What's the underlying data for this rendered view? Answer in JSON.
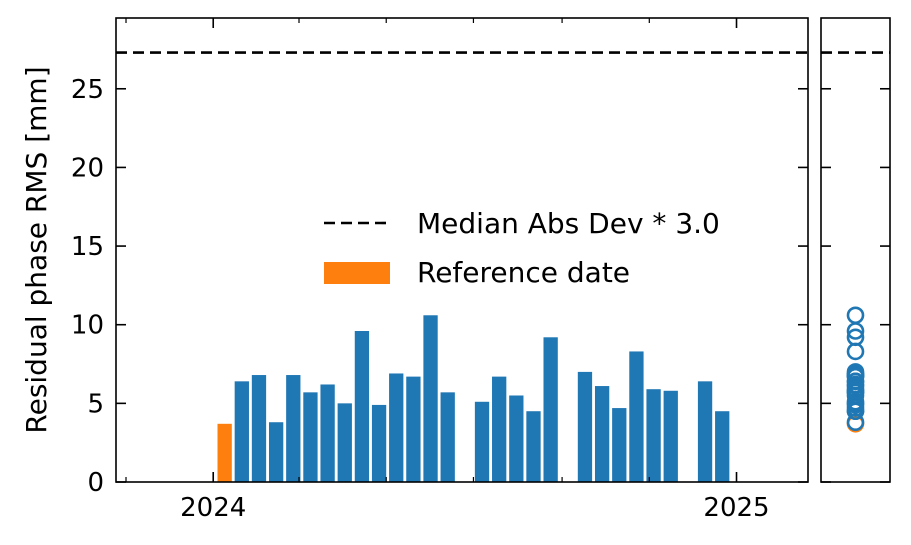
{
  "chart_data": {
    "type": "bar",
    "ylabel": "Residual phase RMS [mm]",
    "ylim": [
      0,
      29.5
    ],
    "xlim": [
      "2023-10-25",
      "2025-02-20"
    ],
    "yticks": [
      0,
      5,
      10,
      15,
      20,
      25
    ],
    "xticks": [
      {
        "date": "2024-01-01",
        "label": "2024"
      },
      {
        "date": "2025-01-01",
        "label": "2025"
      }
    ],
    "minor_xticks": [
      "2023-11-01",
      "2024-03-01",
      "2024-05-01",
      "2024-07-01",
      "2024-09-01",
      "2024-11-01"
    ],
    "threshold": {
      "value": 27.3,
      "label": "Median Abs Dev * 3.0",
      "style": "dashed",
      "color": "#000000"
    },
    "reference": {
      "label": "Reference date",
      "color": "#ff7f0e"
    },
    "series_color": "#1f77b4",
    "bars": [
      {
        "date": "2024-01-09",
        "value": 3.7,
        "reference": true
      },
      {
        "date": "2024-01-21",
        "value": 6.4
      },
      {
        "date": "2024-02-02",
        "value": 6.8
      },
      {
        "date": "2024-02-14",
        "value": 3.8
      },
      {
        "date": "2024-02-26",
        "value": 6.8
      },
      {
        "date": "2024-03-09",
        "value": 5.7
      },
      {
        "date": "2024-03-21",
        "value": 6.2
      },
      {
        "date": "2024-04-02",
        "value": 5.0
      },
      {
        "date": "2024-04-14",
        "value": 9.6
      },
      {
        "date": "2024-04-26",
        "value": 4.9
      },
      {
        "date": "2024-05-08",
        "value": 6.9
      },
      {
        "date": "2024-05-20",
        "value": 6.7
      },
      {
        "date": "2024-06-01",
        "value": 10.6
      },
      {
        "date": "2024-06-13",
        "value": 5.7
      },
      {
        "date": "2024-07-07",
        "value": 5.1
      },
      {
        "date": "2024-07-19",
        "value": 6.7
      },
      {
        "date": "2024-07-31",
        "value": 5.5
      },
      {
        "date": "2024-08-12",
        "value": 4.5
      },
      {
        "date": "2024-08-24",
        "value": 9.2
      },
      {
        "date": "2024-09-17",
        "value": 7.0
      },
      {
        "date": "2024-09-29",
        "value": 6.1
      },
      {
        "date": "2024-10-11",
        "value": 4.7
      },
      {
        "date": "2024-10-23",
        "value": 8.3
      },
      {
        "date": "2024-11-04",
        "value": 5.9
      },
      {
        "date": "2024-11-16",
        "value": 5.8
      },
      {
        "date": "2024-12-10",
        "value": 6.4
      },
      {
        "date": "2024-12-22",
        "value": 4.5
      }
    ]
  }
}
